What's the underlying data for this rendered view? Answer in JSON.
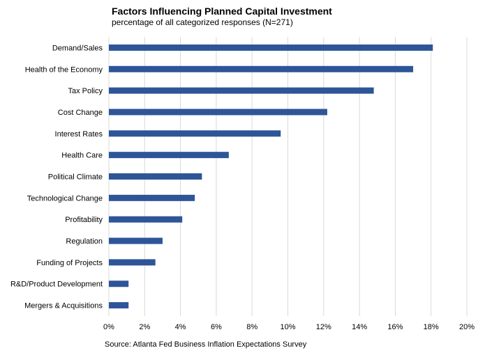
{
  "chart_data": {
    "type": "bar",
    "orientation": "horizontal",
    "title": "Factors Influencing Planned Capital Investment",
    "subtitle": "percentage of all categorized responses (N=271)",
    "source": "Source: Atlanta Fed Business Inflation Expectations Survey",
    "categories": [
      "Demand/Sales",
      "Health of the Economy",
      "Tax Policy",
      "Cost Change",
      "Interest Rates",
      "Health Care",
      "Political Climate",
      "Technological Change",
      "Profitability",
      "Regulation",
      "Funding of Projects",
      "R&D/Product Development",
      "Mergers & Acquisitions"
    ],
    "values": [
      18.1,
      17.0,
      14.8,
      12.2,
      9.6,
      6.7,
      5.2,
      4.8,
      4.1,
      3.0,
      2.6,
      1.1,
      1.1
    ],
    "xlim": [
      0,
      20
    ],
    "xticks": [
      "0%",
      "2%",
      "4%",
      "6%",
      "8%",
      "10%",
      "12%",
      "14%",
      "16%",
      "18%",
      "20%"
    ],
    "xtick_values": [
      0,
      2,
      4,
      6,
      8,
      10,
      12,
      14,
      16,
      18,
      20
    ],
    "grid": true,
    "bar_color": "#2e5597",
    "grid_color": "#d9d9d9"
  }
}
